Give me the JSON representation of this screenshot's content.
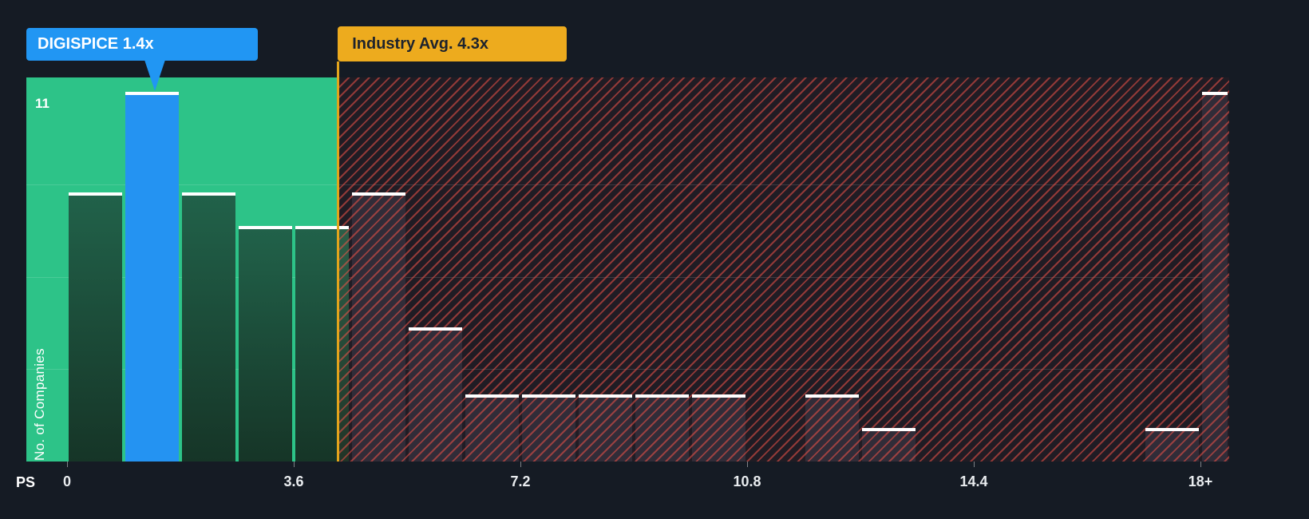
{
  "colors": {
    "background": "#151b24",
    "below_avg_zone_green": "#2dc388",
    "highlight_bar_blue": "#2196f3",
    "industry_marker_yellow": "#e8a71b",
    "hatch_red": "#ef5046",
    "bar_dark": "#272c39",
    "bar_green": "#21624a",
    "bar_cap_white": "#ffffff"
  },
  "callouts": {
    "company": {
      "label": "DIGISPICE 1.4x"
    },
    "industry": {
      "label": "Industry Avg. 4.3x"
    }
  },
  "axis": {
    "y_title": "No. of Companies",
    "y_max_label": "11",
    "x_title": "PS",
    "x_ticks": [
      {
        "label": "0",
        "value": 0
      },
      {
        "label": "3.6",
        "value": 3.6
      },
      {
        "label": "7.2",
        "value": 7.2
      },
      {
        "label": "10.8",
        "value": 10.8
      },
      {
        "label": "14.4",
        "value": 14.4
      },
      {
        "label": "18+",
        "value": 18
      }
    ]
  },
  "chart_data": {
    "type": "bar",
    "xlabel": "PS",
    "ylabel": "No. of Companies",
    "ylim": [
      0,
      11
    ],
    "bin_width": 0.9,
    "categories": [
      "0-0.9",
      "0.9-1.8",
      "1.8-2.7",
      "2.7-3.6",
      "3.6-4.5",
      "4.5-5.4",
      "5.4-6.3",
      "6.3-7.2",
      "7.2-8.1",
      "8.1-9",
      "9-9.9",
      "9.9-10.8",
      "10.8-11.7",
      "11.7-12.6",
      "12.6-13.5",
      "13.5-14.4",
      "14.4-15.3",
      "15.3-16.2",
      "16.2-17.1",
      "17.1-18",
      "18+"
    ],
    "values": [
      8,
      11,
      8,
      7,
      7,
      8,
      4,
      2,
      2,
      2,
      2,
      2,
      0,
      2,
      1,
      0,
      0,
      0,
      0,
      1,
      11
    ],
    "highlight": {
      "index": 1,
      "company": "DIGISPICE",
      "x": 1.4,
      "label": "DIGISPICE 1.4x"
    },
    "industry_avg": 4.3,
    "industry_avg_label": "Industry Avg. 4.3x",
    "grid_lines_at": [
      2.75,
      5.5,
      8.25
    ],
    "zones": {
      "green_range": [
        0,
        4.3
      ],
      "hatched_range": [
        4.3,
        18.45
      ]
    },
    "legend": "none",
    "grid": "subtle horizontal quarter lines"
  }
}
